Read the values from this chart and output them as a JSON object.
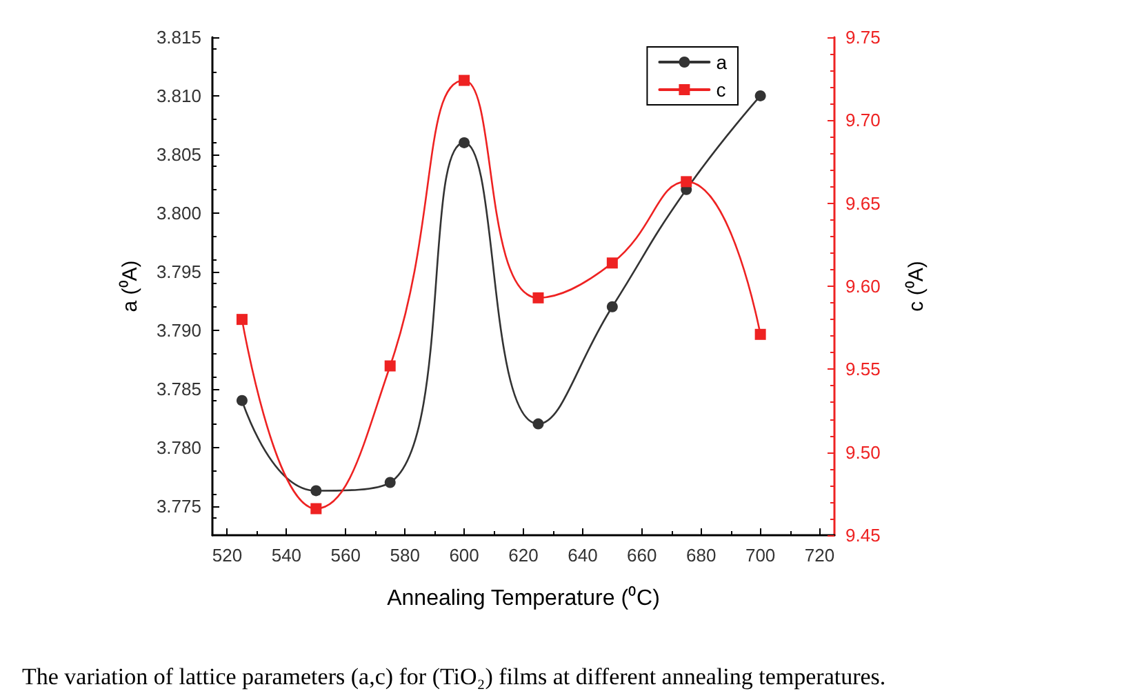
{
  "chart_data": {
    "type": "line",
    "xlabel": "Annealing Temperature (⁰C)",
    "ylabel": "a (⁰A)",
    "y2label": "c (⁰A)",
    "annotations": [
      "The variation of lattice parameters (a,c) for (TiO₂) films at different annealing temperatures."
    ],
    "x": [
      525,
      550,
      575,
      600,
      625,
      650,
      675,
      700
    ],
    "series": [
      {
        "name": "a",
        "color": "#333333",
        "marker": "circle",
        "values": [
          3.784,
          3.7763,
          3.777,
          3.806,
          3.782,
          3.792,
          3.802,
          3.81
        ]
      },
      {
        "name": "c",
        "color": "#ee2222",
        "marker": "square",
        "axis": "y2",
        "values": [
          9.58,
          9.466,
          9.552,
          9.724,
          9.593,
          9.614,
          9.663,
          9.571
        ]
      }
    ],
    "xlim": [
      515,
      725
    ],
    "xticks": [
      520,
      540,
      560,
      580,
      600,
      620,
      640,
      660,
      680,
      700,
      720
    ],
    "ylim": [
      3.7725,
      3.815
    ],
    "yticks": [
      3.775,
      {
        "value": 3.78,
        "label": "3.780"
      },
      3.785,
      {
        "value": 3.79,
        "label": "3.790"
      },
      3.795,
      {
        "value": 3.8,
        "label": "3.800"
      },
      3.805,
      {
        "value": 3.81,
        "label": "3.810"
      },
      3.815
    ],
    "y2lim": [
      9.45,
      9.75
    ],
    "y2ticks": [
      9.45,
      {
        "value": 9.5,
        "label": "9.50"
      },
      9.55,
      {
        "value": 9.6,
        "label": "9.60"
      },
      9.65,
      {
        "value": 9.7,
        "label": "9.70"
      },
      9.75
    ],
    "legend": "top right",
    "grid": false,
    "line_style": "solid"
  }
}
